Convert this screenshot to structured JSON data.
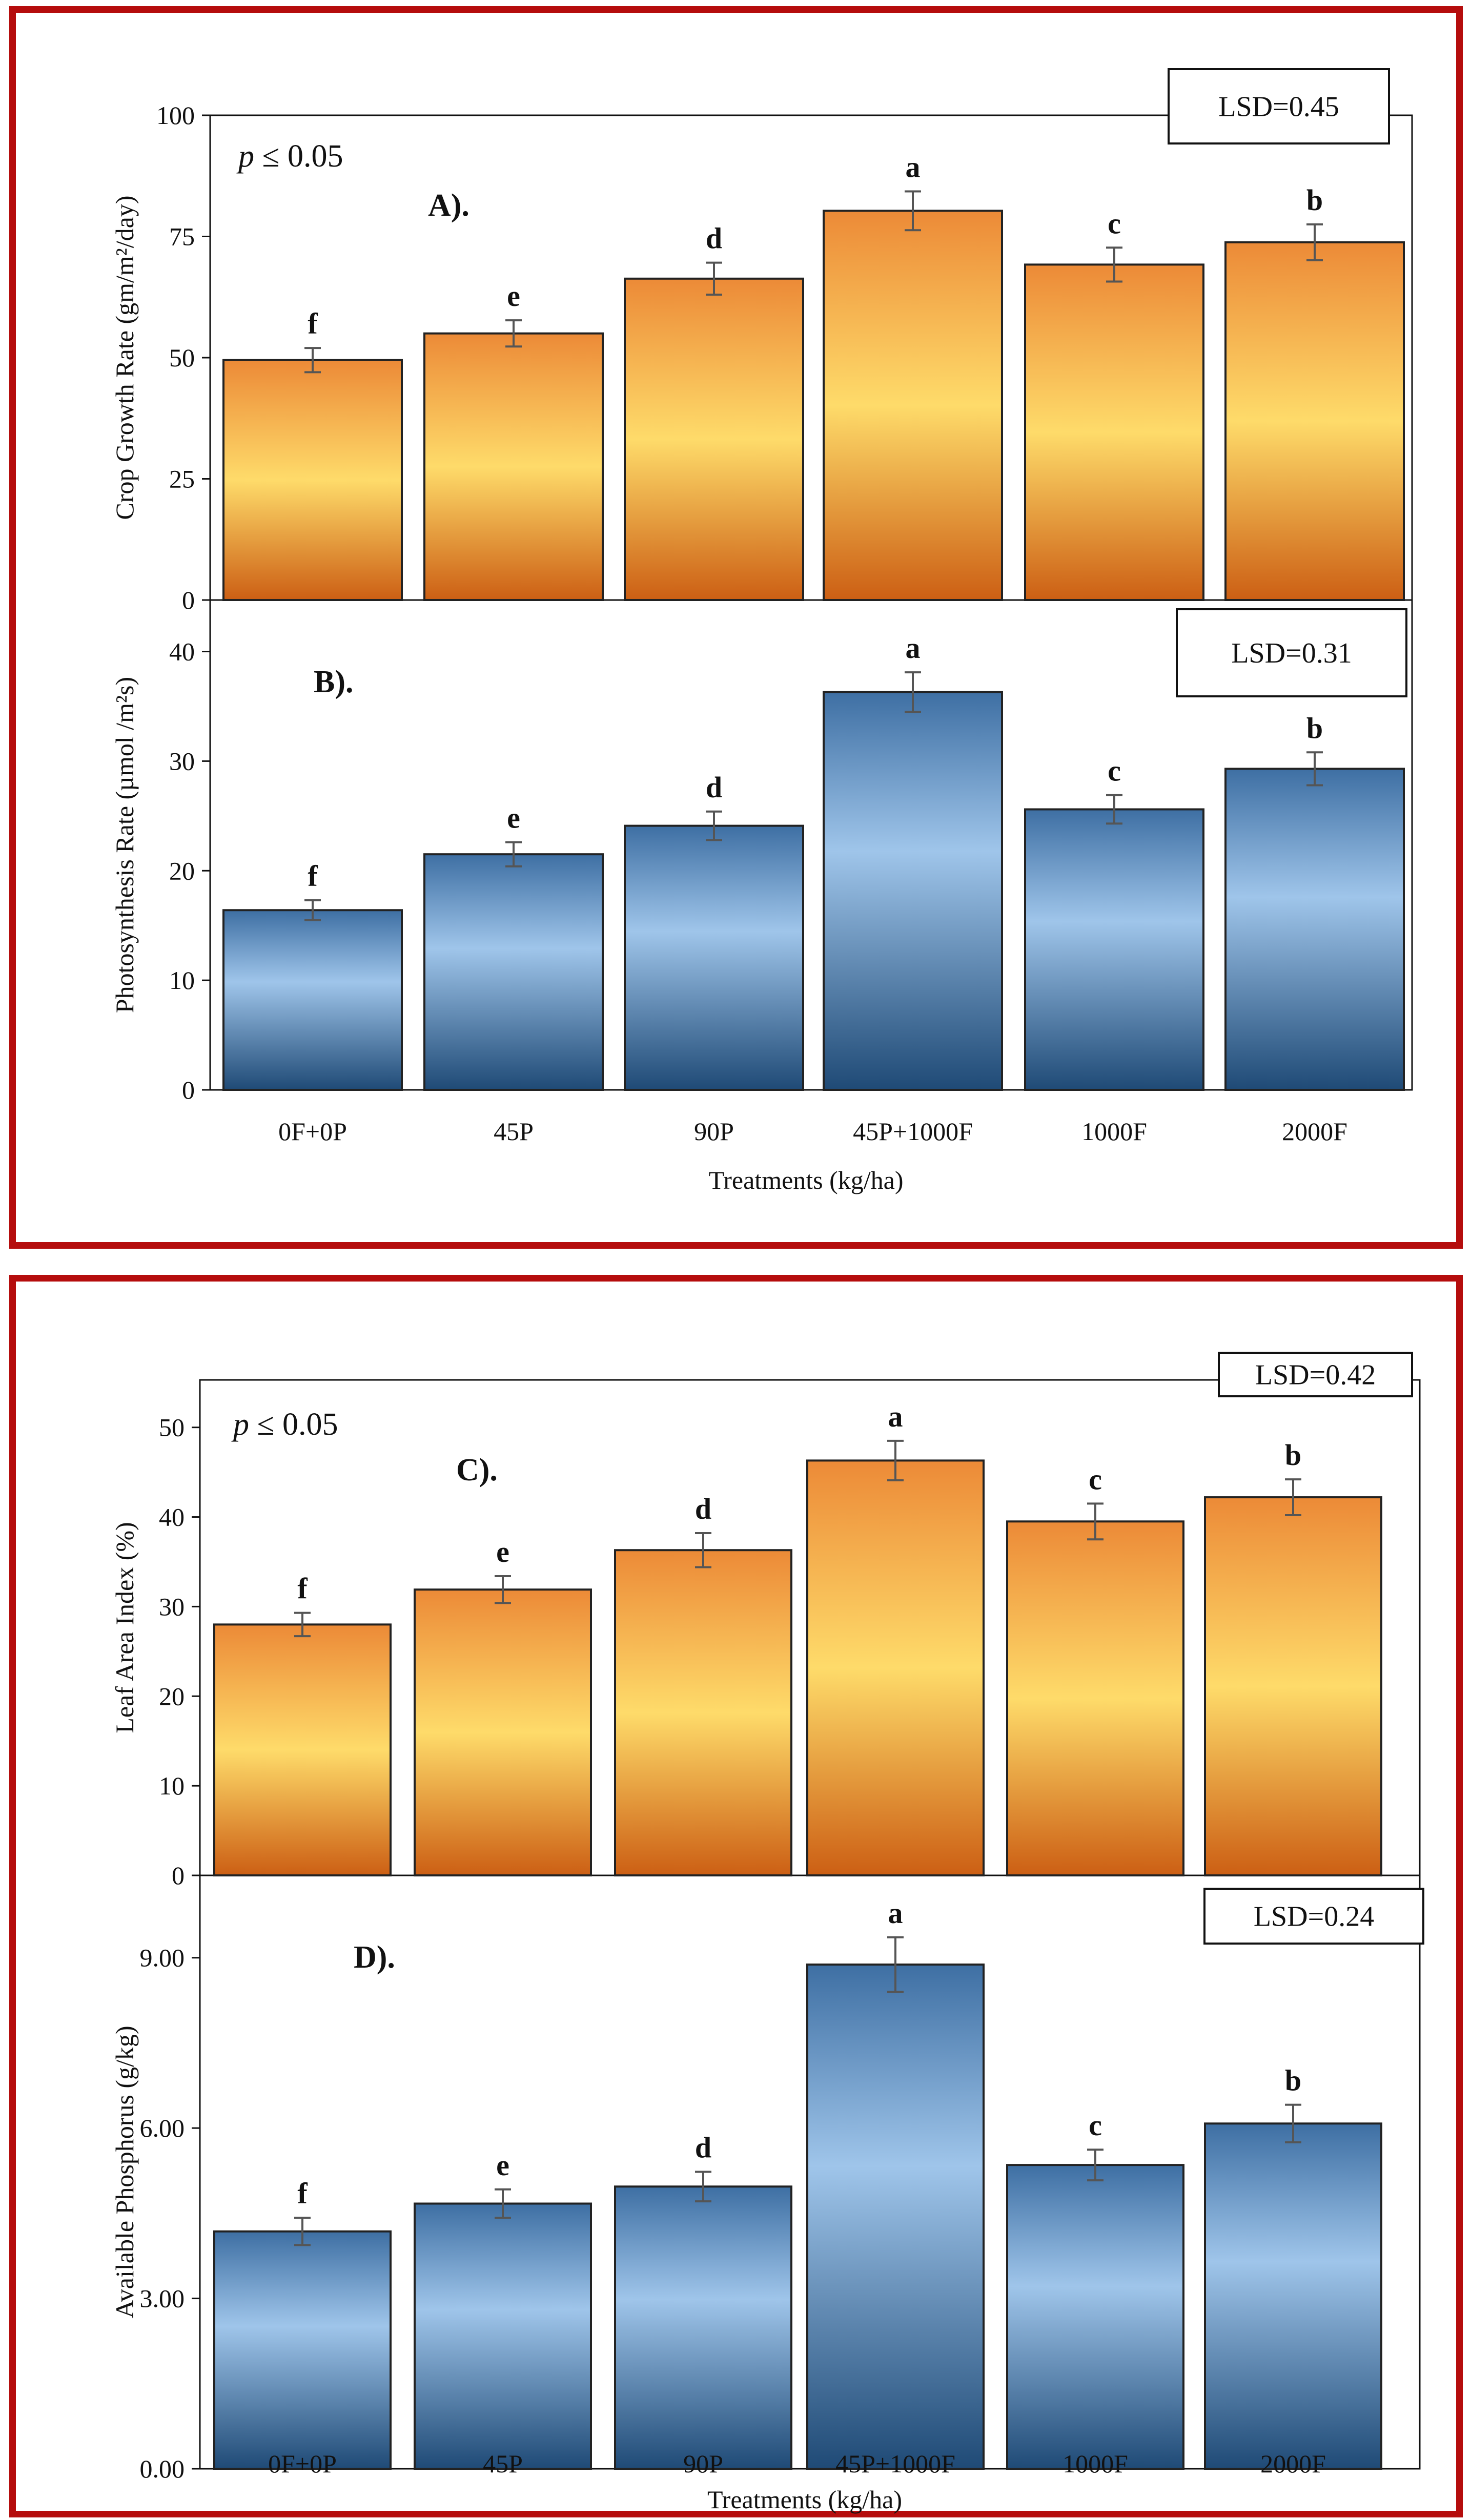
{
  "panels": [
    {
      "group": 0,
      "axis": "top",
      "label": "A).",
      "lsd": "LSD=0.45",
      "pvalue": {
        "italic": "p",
        "rest": " ≤ 0.05"
      },
      "ylabel": "Crop Growth Rate (gm/m²/day)",
      "ticks": [
        "0",
        "25",
        "50",
        "75",
        "100"
      ],
      "ylim": [
        0,
        100
      ],
      "values": [
        49.5,
        55,
        66.3,
        80.3,
        69.2,
        73.8
      ],
      "errors": [
        2.5,
        2.7,
        3.3,
        4.0,
        3.5,
        3.7
      ],
      "letters": [
        "f",
        "e",
        "d",
        "a",
        "c",
        "b"
      ],
      "palette": "orange"
    },
    {
      "group": 0,
      "axis": "bottom",
      "label": "B).",
      "lsd": "LSD=0.31",
      "ylabel": "Photosynthesis Rate (µmol /m²s)",
      "ticks": [
        "0",
        "10",
        "20",
        "30",
        "40"
      ],
      "ylim": [
        0,
        44.7
      ],
      "values": [
        16.4,
        21.5,
        24.1,
        36.3,
        25.6,
        29.3
      ],
      "errors": [
        0.9,
        1.1,
        1.3,
        1.8,
        1.3,
        1.5
      ],
      "letters": [
        "f",
        "e",
        "d",
        "a",
        "c",
        "b"
      ],
      "palette": "blue"
    },
    {
      "group": 1,
      "axis": "top",
      "label": "C).",
      "lsd": "LSD=0.42",
      "pvalue": {
        "italic": "p",
        "rest": " ≤ 0.05"
      },
      "ylabel": "Leaf Area Index (%)",
      "ticks": [
        "0",
        "10",
        "20",
        "30",
        "40",
        "50"
      ],
      "ylim": [
        0,
        55.3
      ],
      "values": [
        28.0,
        31.9,
        36.3,
        46.3,
        39.5,
        42.2
      ],
      "errors": [
        1.3,
        1.5,
        1.9,
        2.2,
        2.0,
        2.0
      ],
      "letters": [
        "f",
        "e",
        "d",
        "a",
        "c",
        "b"
      ],
      "palette": "orange"
    },
    {
      "group": 1,
      "axis": "bottom",
      "label": "D).",
      "lsd": "LSD=0.24",
      "ylabel": "Available Phosphorus (g/kg)",
      "ticks": [
        "0.00",
        "3.00",
        "6.00",
        "9.00"
      ],
      "ylim": [
        0,
        10.45
      ],
      "values": [
        4.18,
        4.67,
        4.97,
        8.88,
        5.35,
        6.08
      ],
      "errors": [
        0.24,
        0.25,
        0.26,
        0.48,
        0.27,
        0.33
      ],
      "letters": [
        "f",
        "e",
        "d",
        "a",
        "c",
        "b"
      ],
      "palette": "blue"
    }
  ],
  "categories": [
    "0F+0P",
    "45P",
    "90P",
    "45P+1000F",
    "1000F",
    "2000F"
  ],
  "xlabel": "Treatments (kg/ha)",
  "colors": {
    "frame": "#b50d0d",
    "orange_dark": "#cc5f14",
    "orange_light": "#fedb6a",
    "blue_dark": "#1f4a76",
    "blue_light": "#9fc5ea",
    "bar_stroke": "#222222",
    "error_bar": "#555555"
  },
  "chart_data": [
    {
      "type": "bar",
      "title": "A).",
      "categories": [
        "0F+0P",
        "45P",
        "90P",
        "45P+1000F",
        "1000F",
        "2000F"
      ],
      "values": [
        49.5,
        55,
        66.3,
        80.3,
        69.2,
        73.8
      ],
      "error": [
        2.5,
        2.7,
        3.3,
        4.0,
        3.5,
        3.7
      ],
      "letters": [
        "f",
        "e",
        "d",
        "a",
        "c",
        "b"
      ],
      "annotations": [
        "LSD=0.45",
        "p ≤ 0.05"
      ],
      "xlabel": "Treatments (kg/ha)",
      "ylabel": "Crop Growth Rate (gm/m²/day)",
      "ylim": [
        0,
        100
      ]
    },
    {
      "type": "bar",
      "title": "B).",
      "categories": [
        "0F+0P",
        "45P",
        "90P",
        "45P+1000F",
        "1000F",
        "2000F"
      ],
      "values": [
        16.4,
        21.5,
        24.1,
        36.3,
        25.6,
        29.3
      ],
      "error": [
        0.9,
        1.1,
        1.3,
        1.8,
        1.3,
        1.5
      ],
      "letters": [
        "f",
        "e",
        "d",
        "a",
        "c",
        "b"
      ],
      "annotations": [
        "LSD=0.31"
      ],
      "xlabel": "Treatments (kg/ha)",
      "ylabel": "Photosynthesis Rate (µmol /m²s)",
      "ylim": [
        0,
        44.7
      ]
    },
    {
      "type": "bar",
      "title": "C).",
      "categories": [
        "0F+0P",
        "45P",
        "90P",
        "45P+1000F",
        "1000F",
        "2000F"
      ],
      "values": [
        28.0,
        31.9,
        36.3,
        46.3,
        39.5,
        42.2
      ],
      "error": [
        1.3,
        1.5,
        1.9,
        2.2,
        2.0,
        2.0
      ],
      "letters": [
        "f",
        "e",
        "d",
        "a",
        "c",
        "b"
      ],
      "annotations": [
        "LSD=0.42",
        "p ≤ 0.05"
      ],
      "xlabel": "Treatments (kg/ha)",
      "ylabel": "Leaf Area Index (%)",
      "ylim": [
        0,
        55.3
      ]
    },
    {
      "type": "bar",
      "title": "D).",
      "categories": [
        "0F+0P",
        "45P",
        "90P",
        "45P+1000F",
        "1000F",
        "2000F"
      ],
      "values": [
        4.18,
        4.67,
        4.97,
        8.88,
        5.35,
        6.08
      ],
      "error": [
        0.24,
        0.25,
        0.26,
        0.48,
        0.27,
        0.33
      ],
      "letters": [
        "f",
        "e",
        "d",
        "a",
        "c",
        "b"
      ],
      "annotations": [
        "LSD=0.24"
      ],
      "xlabel": "Treatments (kg/ha)",
      "ylabel": "Available Phosphorus (g/kg)",
      "ylim": [
        0,
        10.45
      ]
    }
  ]
}
